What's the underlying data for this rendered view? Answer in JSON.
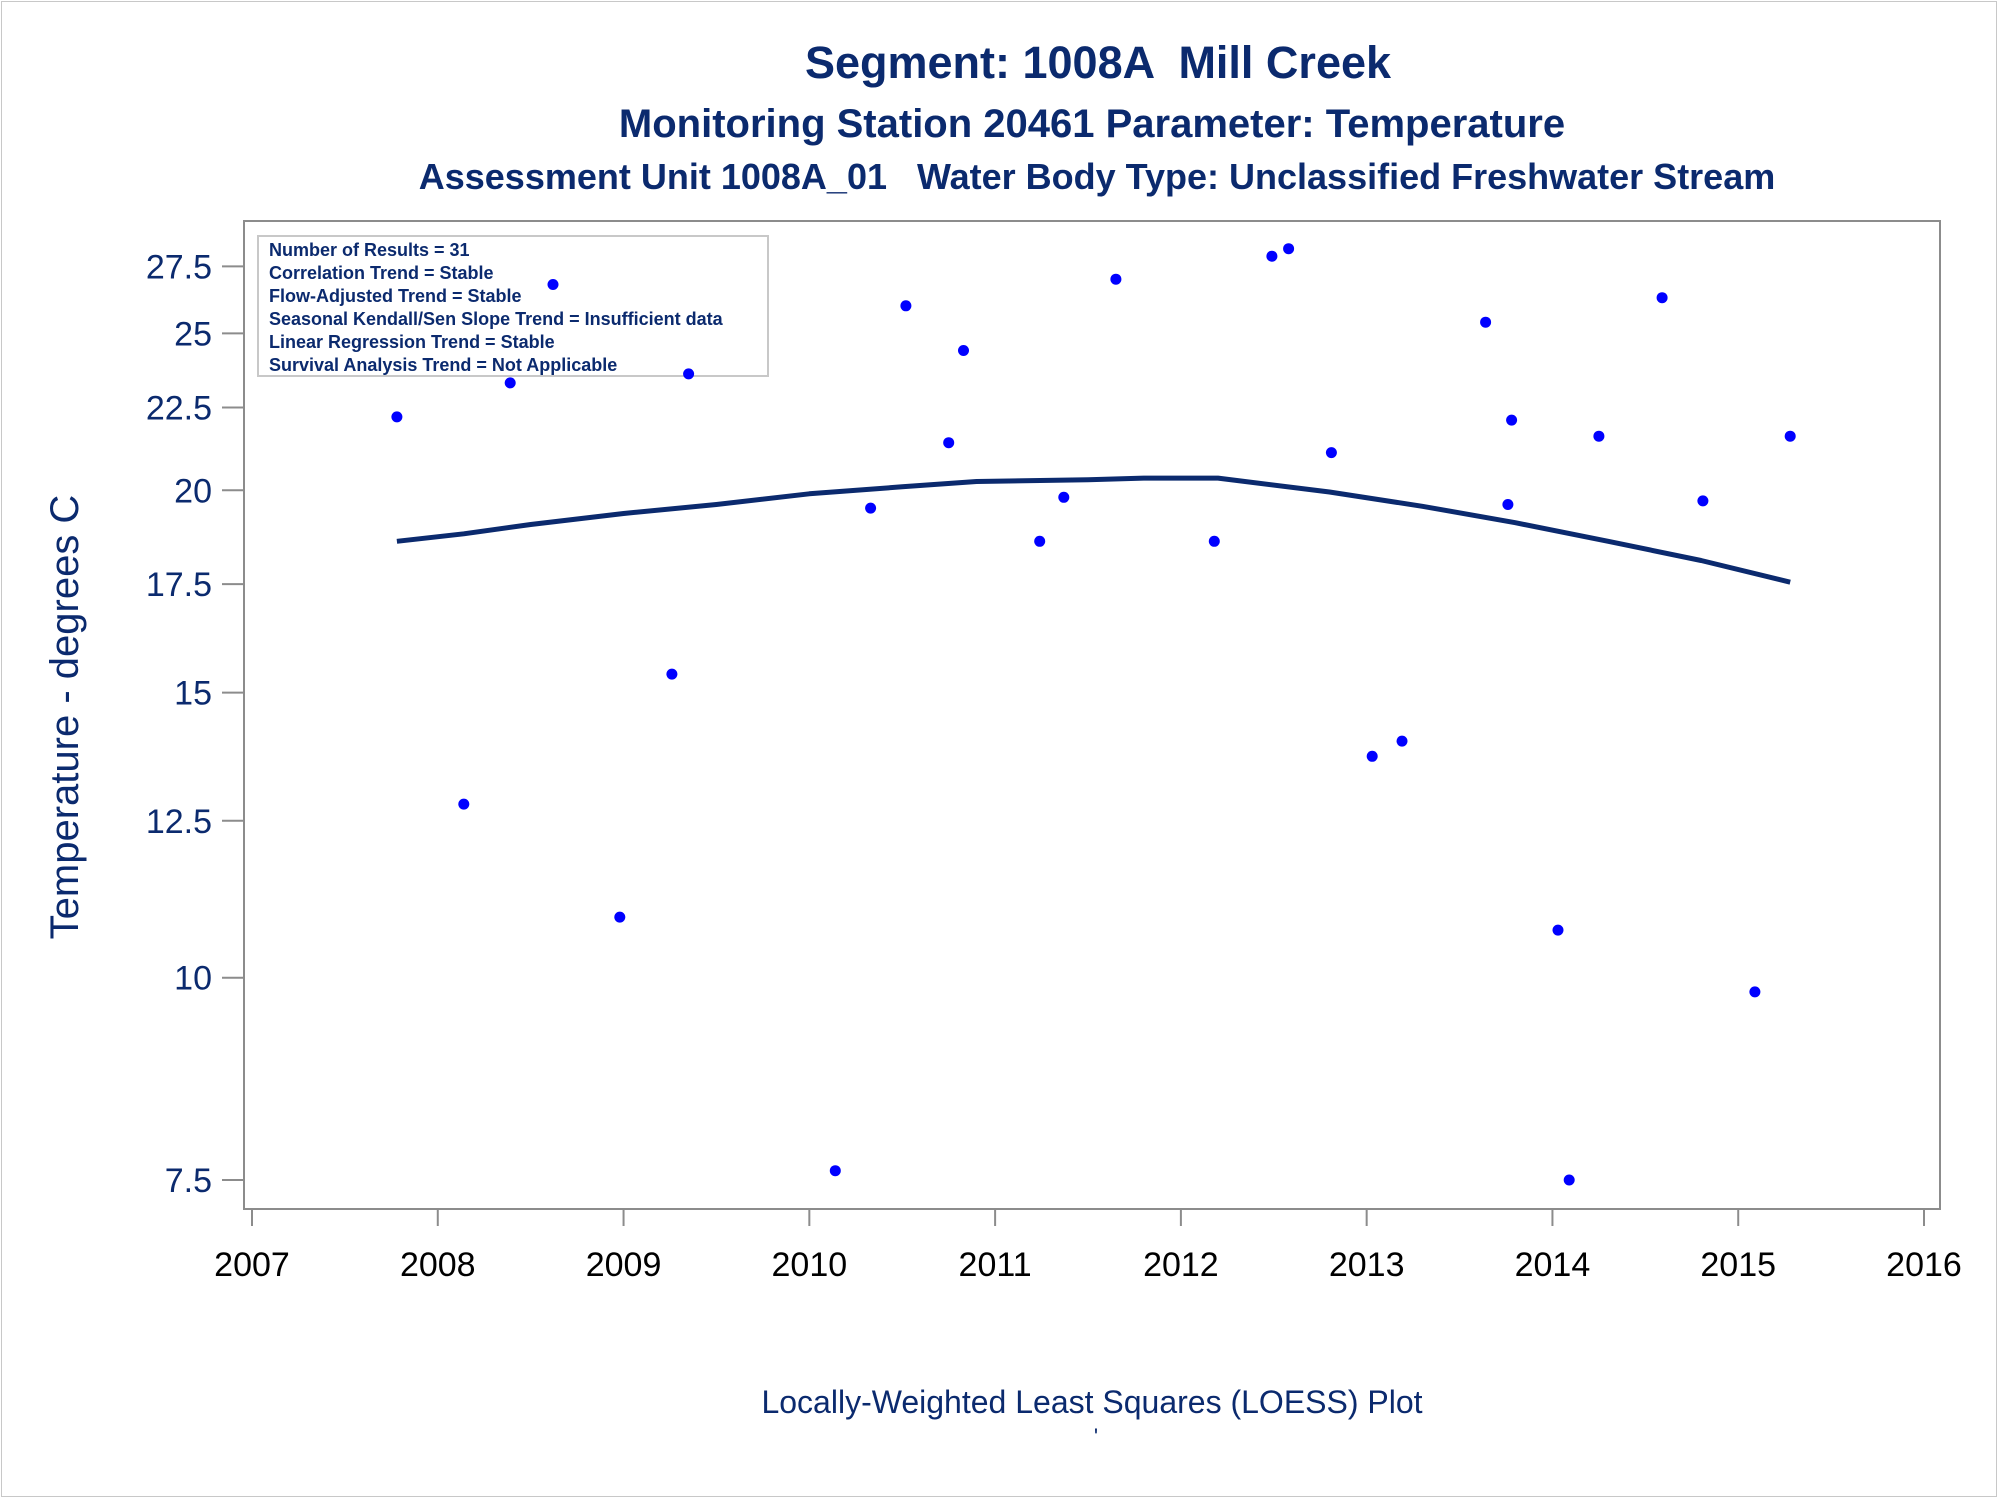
{
  "chart_data": {
    "type": "scatter",
    "title": "Segment: 1008A  Mill Creek",
    "subtitle": "Monitoring Station 20461 Parameter: Temperature",
    "subtitle2": "Assessment Unit 1008A_01   Water Body Type: Unclassified Freshwater Stream",
    "xlabel": "Locally-Weighted Least Squares (LOESS) Plot",
    "ylabel": "Temperature - degrees C",
    "footnote": "'",
    "y_scale": "log",
    "xlim": [
      2007,
      2016
    ],
    "ylim": [
      7.3,
      29.0
    ],
    "x_ticks": [
      "2007",
      "2008",
      "2009",
      "2010",
      "2011",
      "2012",
      "2013",
      "2014",
      "2015",
      "2016"
    ],
    "y_ticks": [
      "7.5",
      "10",
      "12.5",
      "15",
      "17.5",
      "20",
      "22.5",
      "25",
      "27.5"
    ],
    "grid": false,
    "colors": {
      "points": "#0000ff",
      "line": "#0b2a6e",
      "text": "#0b2a6e"
    },
    "stats_box": {
      "position": "top-left",
      "lines": [
        "Number of Results = 31",
        "Correlation Trend = Stable",
        "Flow-Adjusted Trend = Stable",
        "Seasonal Kendall/Sen Slope Trend = Insufficient data",
        "Linear Regression Trend = Stable",
        "Survival Analysis Trend = Not Applicable"
      ]
    },
    "series": [
      {
        "type": "scatter",
        "points": [
          {
            "x": 2007.78,
            "y": 22.2
          },
          {
            "x": 2008.14,
            "y": 12.8
          },
          {
            "x": 2008.39,
            "y": 23.3
          },
          {
            "x": 2008.62,
            "y": 26.8
          },
          {
            "x": 2008.98,
            "y": 10.9
          },
          {
            "x": 2009.26,
            "y": 15.4
          },
          {
            "x": 2009.35,
            "y": 23.6
          },
          {
            "x": 2010.14,
            "y": 7.6
          },
          {
            "x": 2010.33,
            "y": 19.5
          },
          {
            "x": 2010.52,
            "y": 26.0
          },
          {
            "x": 2010.75,
            "y": 21.4
          },
          {
            "x": 2010.83,
            "y": 24.4
          },
          {
            "x": 2011.24,
            "y": 18.6
          },
          {
            "x": 2011.37,
            "y": 19.8
          },
          {
            "x": 2011.65,
            "y": 27.0
          },
          {
            "x": 2012.18,
            "y": 18.6
          },
          {
            "x": 2012.49,
            "y": 27.9
          },
          {
            "x": 2012.58,
            "y": 28.2
          },
          {
            "x": 2012.81,
            "y": 21.1
          },
          {
            "x": 2013.03,
            "y": 13.7
          },
          {
            "x": 2013.19,
            "y": 14.0
          },
          {
            "x": 2013.64,
            "y": 25.4
          },
          {
            "x": 2013.76,
            "y": 19.6
          },
          {
            "x": 2013.78,
            "y": 22.1
          },
          {
            "x": 2014.03,
            "y": 10.7
          },
          {
            "x": 2014.09,
            "y": 7.5
          },
          {
            "x": 2014.25,
            "y": 21.6
          },
          {
            "x": 2014.59,
            "y": 26.3
          },
          {
            "x": 2014.81,
            "y": 19.7
          },
          {
            "x": 2015.09,
            "y": 9.8
          },
          {
            "x": 2015.28,
            "y": 21.6
          }
        ]
      },
      {
        "type": "line",
        "points": [
          {
            "x": 2007.78,
            "y": 18.6
          },
          {
            "x": 2008.14,
            "y": 18.8
          },
          {
            "x": 2008.5,
            "y": 19.05
          },
          {
            "x": 2009.0,
            "y": 19.35
          },
          {
            "x": 2009.5,
            "y": 19.6
          },
          {
            "x": 2010.0,
            "y": 19.9
          },
          {
            "x": 2010.5,
            "y": 20.1
          },
          {
            "x": 2010.9,
            "y": 20.25
          },
          {
            "x": 2011.5,
            "y": 20.3
          },
          {
            "x": 2011.8,
            "y": 20.35
          },
          {
            "x": 2012.2,
            "y": 20.35
          },
          {
            "x": 2012.8,
            "y": 19.95
          },
          {
            "x": 2013.3,
            "y": 19.55
          },
          {
            "x": 2013.8,
            "y": 19.1
          },
          {
            "x": 2014.3,
            "y": 18.6
          },
          {
            "x": 2014.8,
            "y": 18.1
          },
          {
            "x": 2015.28,
            "y": 17.55
          }
        ]
      }
    ]
  }
}
